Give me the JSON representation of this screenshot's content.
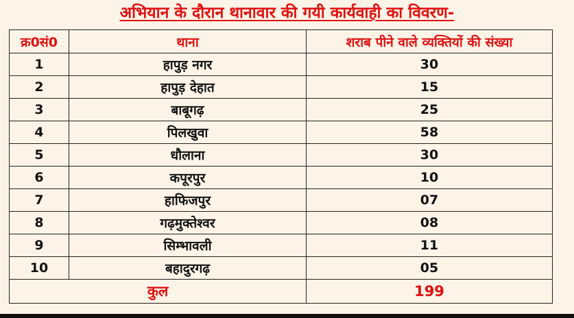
{
  "title": "अभियान के दौरान थानावार की गयी कार्यवाही का विवरण-",
  "table": {
    "headers": [
      "क्र0सं0",
      "थाना",
      "शराब पीने वाले व्यक्तियों की संख्या"
    ],
    "rows": [
      [
        "1",
        "हापुड़ नगर",
        "30"
      ],
      [
        "2",
        "हापुड़ देहात",
        "15"
      ],
      [
        "3",
        "बाबूगढ़",
        "25"
      ],
      [
        "4",
        "पिलखुवा",
        "58"
      ],
      [
        "5",
        "धौलाना",
        "30"
      ],
      [
        "6",
        "कपूरपुर",
        "10"
      ],
      [
        "7",
        "हाफिजपुर",
        "07"
      ],
      [
        "8",
        "गढ़मुक्तेश्वर",
        "08"
      ],
      [
        "9",
        "सिम्भावली",
        "11"
      ],
      [
        "10",
        "बहादुरगढ़",
        "05"
      ]
    ],
    "total": {
      "label": "कुल",
      "value": "199"
    }
  },
  "colors": {
    "accent": "#e01010",
    "background": "#fdf3e7",
    "text": "#111111"
  }
}
